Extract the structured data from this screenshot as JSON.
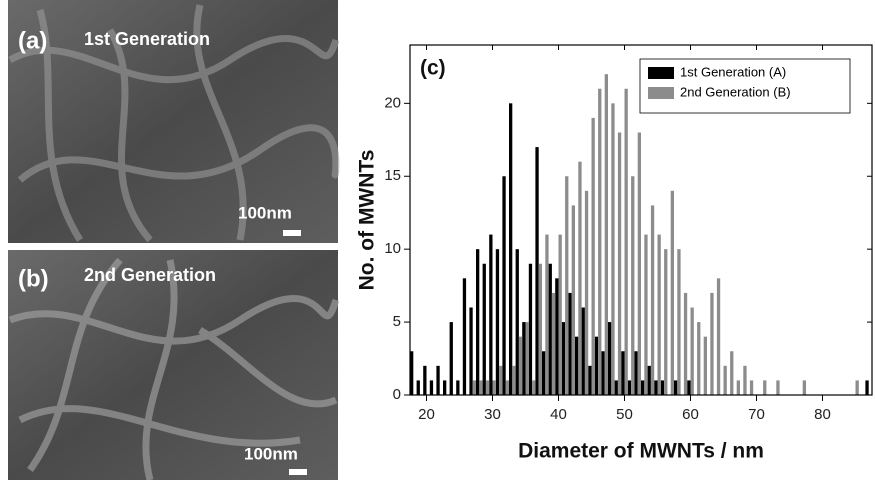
{
  "panels": [
    {
      "label": "(a)",
      "title": "1st Generation",
      "scale": "100nm"
    },
    {
      "label": "(b)",
      "title": "2nd Generation",
      "scale": "100nm"
    }
  ],
  "chart_data": {
    "type": "histogram",
    "annotation": "(c)",
    "x_label": "Diameter of MWNTs / nm",
    "y_label": "No. of MWNTs",
    "bins": [
      17.5,
      18.5,
      19.5,
      20.5,
      21.5,
      22.5,
      23.5,
      24.5,
      25.5,
      26.5,
      27.5,
      28.5,
      29.5,
      30.5,
      31.5,
      32.5,
      33.5,
      34.5,
      35.5,
      36.5,
      37.5,
      38.5,
      39.5,
      40.5,
      41.5,
      42.5,
      43.5,
      44.5,
      45.5,
      46.5,
      47.5,
      48.5,
      49.5,
      50.5,
      51.5,
      52.5,
      53.5,
      54.5,
      55.5,
      56.5,
      57.5,
      58.5,
      59.5,
      60.5,
      61.5,
      62.5,
      63.5,
      64.5,
      65.5,
      66.5,
      67.5,
      68.5,
      69.5,
      70.5,
      71.5,
      72.5,
      73.5,
      74.5,
      75.5,
      76.5,
      77.5,
      78.5,
      79.5,
      80.5,
      81.5,
      82.5,
      83.5,
      84.5,
      85.5,
      86.5,
      87.5
    ],
    "series": [
      {
        "name": "1st Generation (A)",
        "color": "#000000",
        "values": [
          3,
          1,
          2,
          1,
          2,
          1,
          5,
          1,
          8,
          6,
          10,
          9,
          11,
          10,
          15,
          20,
          10,
          5,
          9,
          17,
          3,
          9,
          8,
          5,
          7,
          4,
          6,
          2,
          4,
          3,
          5,
          1,
          3,
          1,
          3,
          1,
          2,
          1,
          1,
          0,
          1,
          0,
          1,
          0,
          0,
          0,
          0,
          0,
          0,
          0,
          0,
          0,
          0,
          0,
          0,
          0,
          0,
          0,
          0,
          0,
          0,
          0,
          0,
          0,
          0,
          0,
          0,
          0,
          0,
          1
        ]
      },
      {
        "name": "2nd Generation (B)",
        "color": "#8c8c8c",
        "values": [
          0,
          0,
          0,
          0,
          0,
          0,
          0,
          0,
          0,
          1,
          1,
          1,
          1,
          2,
          1,
          2,
          4,
          5,
          1,
          9,
          11,
          7,
          11,
          15,
          13,
          16,
          14,
          19,
          21,
          22,
          20,
          18,
          21,
          15,
          18,
          11,
          13,
          11,
          10,
          14,
          10,
          7,
          6,
          5,
          4,
          7,
          8,
          2,
          3,
          1,
          2,
          1,
          0,
          1,
          0,
          1,
          0,
          0,
          0,
          1,
          0,
          0,
          0,
          0,
          0,
          0,
          0,
          1,
          0,
          0
        ]
      }
    ],
    "xlim": [
      17.5,
      87.5
    ],
    "xticks": [
      20,
      30,
      40,
      50,
      60,
      70,
      80
    ],
    "ylim": [
      0,
      24
    ],
    "yticks": [
      0,
      5,
      10,
      15,
      20
    ],
    "legend": "upper right"
  }
}
